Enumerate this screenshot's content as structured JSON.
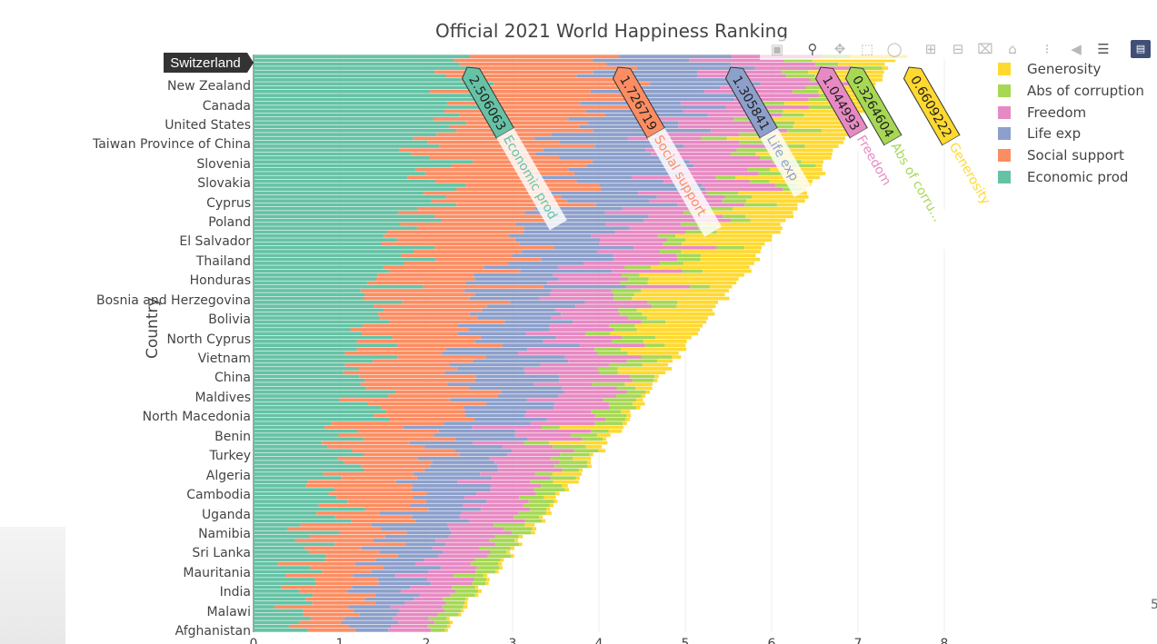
{
  "title": "Official 2021 World Happiness Ranking",
  "toolbar": {
    "camera": "camera-icon",
    "zoom": "zoom-icon",
    "pan": "pan-icon",
    "box_select": "box-select-icon",
    "lasso": "lasso-icon",
    "zoom_in": "zoom-in-icon",
    "zoom_out": "zoom-out-icon",
    "autoscale": "autoscale-icon",
    "reset": "home-icon",
    "spike": "spike-lines-icon",
    "hover_closest": "hover-closest-icon",
    "hover_compare": "hover-compare-icon",
    "plotly": "plotly-logo-icon"
  },
  "colors": {
    "Economic prod": "#66c2a5",
    "Social support": "#fc8d62",
    "Life exp": "#8da0cb",
    "Freedom": "#e78ac3",
    "Abs of corruption": "#a6d854",
    "Generosity": "#ffd92f"
  },
  "chart_data": {
    "type": "bar",
    "orientation": "horizontal",
    "stacked": true,
    "title": "Official 2021 World Happiness Ranking",
    "ylabel": "Country",
    "xlabel": "",
    "xlim": [
      0,
      8.4
    ],
    "x_ticks": [
      "0",
      "1",
      "2",
      "3",
      "4",
      "5",
      "6",
      "7",
      "8"
    ],
    "grid": true,
    "legend_position": "top-right",
    "legend": [
      "Generosity",
      "Abs of corruption",
      "Freedom",
      "Life exp",
      "Social support",
      "Economic prod"
    ],
    "y_tick_labels": [
      "Switzerland",
      "New Zealand",
      "Canada",
      "United States",
      "Taiwan Province of China",
      "Slovenia",
      "Slovakia",
      "Cyprus",
      "Poland",
      "El Salvador",
      "Thailand",
      "Honduras",
      "Bosnia and Herzegovina",
      "Bolivia",
      "North Cyprus",
      "Vietnam",
      "China",
      "Maldives",
      "North Macedonia",
      "Benin",
      "Turkey",
      "Algeria",
      "Cambodia",
      "Uganda",
      "Namibia",
      "Sri Lanka",
      "Mauritania",
      "India",
      "Malawi",
      "Afghanistan"
    ],
    "series_order": [
      "Economic prod",
      "Social support",
      "Life exp",
      "Freedom",
      "Abs of corruption",
      "Generosity"
    ],
    "hover": {
      "country": "Switzerland",
      "values": [
        {
          "name": "Economic prod",
          "value": "2.506063"
        },
        {
          "name": "Social support",
          "value": "1.726719"
        },
        {
          "name": "Life exp",
          "value": "1.305841"
        },
        {
          "name": "Freedom",
          "value": "1.044993"
        },
        {
          "name": "Abs of corruption",
          "value": "0.3264604"
        },
        {
          "name": "Generosity",
          "value": "0.6609222"
        }
      ],
      "labels": [
        "Economic prod",
        "Social support",
        "Life exp",
        "Freedom",
        "Abs of corru...",
        "Generosity"
      ]
    }
  }
}
